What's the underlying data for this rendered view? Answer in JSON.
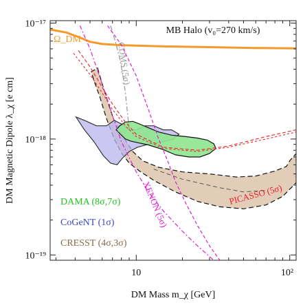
{
  "chart_data": {
    "type": "line",
    "title": "",
    "xlabel": "DM Mass   m_χ [GeV]",
    "ylabel": "DM Magnetic Dipole   λ_χ [e cm]",
    "xscale": "log",
    "yscale": "log",
    "xlim": [
      2.75,
      110
    ],
    "ylim": [
      9e-20,
      1.05e-17
    ],
    "grid": false,
    "x_ticks": [
      {
        "value": 10,
        "label": "10"
      },
      {
        "value": 100,
        "label": "10²"
      }
    ],
    "y_ticks": [
      {
        "value": 1e-17,
        "label": "10⁻¹⁷"
      },
      {
        "value": 1e-18,
        "label": "10⁻¹⁸"
      },
      {
        "value": 1e-19,
        "label": "10⁻¹⁹"
      }
    ],
    "annotation_halo": "MB Halo (v₀=270 km/s)",
    "colors": {
      "omega": "#f39a2a",
      "dama": "#22c322",
      "dama_fill": "#8ee58e",
      "cogent": "#3b47c8",
      "cogent_fill": "#b8b6ee",
      "cresst": "#8a6a4d",
      "cresst_fill": "#dcc4ab",
      "xenon": "#e01fd6",
      "picasso": "#e8232a",
      "cdms": "#9a9a9a"
    },
    "series": [
      {
        "name": "Ω_DM",
        "style": "solid-thick",
        "points": [
          [
            2.75,
            8.8e-18
          ],
          [
            3.5,
            8.3e-18
          ],
          [
            4.3,
            7.5e-18
          ],
          [
            5,
            6.9e-18
          ],
          [
            6,
            6.6e-18
          ],
          [
            8,
            6.45e-18
          ],
          [
            15,
            6.3e-18
          ],
          [
            30,
            6.2e-18
          ],
          [
            60,
            6.1e-18
          ],
          [
            110,
            6.05e-18
          ]
        ]
      },
      {
        "name": "CDMS (5σ)",
        "style": "dash-dot",
        "points": [
          [
            6.8,
            9.5e-18
          ],
          [
            7.3,
            7e-18
          ],
          [
            7.8,
            5e-18
          ],
          [
            8.2,
            3.5e-18
          ],
          [
            8.5,
            2.5e-18
          ],
          [
            8.8,
            1.6e-18
          ],
          [
            9.0,
            1.2e-18
          ]
        ]
      },
      {
        "name": "PICASSO (5σ)",
        "style": "dashed",
        "points": [
          [
            4.2,
            5.8e-18
          ],
          [
            5,
            4.2e-18
          ],
          [
            6,
            2.8e-18
          ],
          [
            7,
            2e-18
          ],
          [
            8.5,
            1.4e-18
          ],
          [
            10,
            1.1e-18
          ],
          [
            15,
            8.5e-19
          ],
          [
            25,
            8e-19
          ],
          [
            40,
            8.7e-19
          ],
          [
            70,
            1.05e-18
          ],
          [
            110,
            1.2e-18
          ]
        ]
      },
      {
        "name": "PICASSO (5σ) lower",
        "style": "dashed",
        "points": [
          [
            3.9,
            5.5e-18
          ],
          [
            5,
            3.6e-18
          ],
          [
            6,
            2.5e-18
          ],
          [
            7,
            1.8e-18
          ],
          [
            8.5,
            1.3e-18
          ],
          [
            10,
            1.05e-18
          ],
          [
            15,
            8.3e-19
          ],
          [
            25,
            7.8e-19
          ],
          [
            40,
            8.5e-19
          ],
          [
            70,
            1e-18
          ],
          [
            110,
            1.15e-18
          ]
        ]
      },
      {
        "name": "XENON (5σ)",
        "style": "dash-dot",
        "points": [
          [
            4.3,
            9.5e-18
          ],
          [
            5,
            6e-18
          ],
          [
            6,
            3e-18
          ],
          [
            7,
            1.6e-18
          ],
          [
            8,
            9.5e-19
          ],
          [
            10,
            5.2e-19
          ],
          [
            12,
            3.5e-19
          ],
          [
            15,
            2.4e-19
          ],
          [
            20,
            1.6e-19
          ],
          [
            25,
            1.2e-19
          ],
          [
            32,
            9e-20
          ]
        ]
      },
      {
        "name": "XENON (5σ) dashed",
        "style": "dashed",
        "points": [
          [
            6.5,
            9.5e-18
          ],
          [
            8,
            6.5e-18
          ],
          [
            10,
            3.5e-18
          ],
          [
            12,
            1.8e-18
          ],
          [
            14,
            1e-18
          ],
          [
            16,
            6.5e-19
          ],
          [
            18,
            4.3e-19
          ],
          [
            21,
            2.8e-19
          ],
          [
            25,
            1.8e-19
          ],
          [
            30,
            1.2e-19
          ],
          [
            35,
            9e-20
          ]
        ]
      },
      {
        "name": "CRESST (4σ,3σ) inner",
        "style": "dashed",
        "points": [
          [
            13,
            5.5e-19
          ],
          [
            20,
            4.5e-19
          ],
          [
            35,
            3.8e-19
          ],
          [
            50,
            3.5e-19
          ],
          [
            70,
            3.6e-19
          ]
        ]
      }
    ],
    "regions": [
      {
        "name": "CRESST (4σ,3σ)",
        "points": [
          [
            5.6,
            4.1e-18
          ],
          [
            6,
            3e-18
          ],
          [
            6.6,
            2e-18
          ],
          [
            7.1,
            1.5e-18
          ],
          [
            7.8,
            1.2e-18
          ],
          [
            8.6,
            9.5e-19
          ],
          [
            9.5,
            7.8e-19
          ],
          [
            11,
            6.5e-19
          ],
          [
            14,
            5.7e-19
          ],
          [
            20,
            5.2e-19
          ],
          [
            30,
            5e-19
          ],
          [
            45,
            4.7e-19
          ],
          [
            60,
            4.8e-19
          ],
          [
            80,
            5.3e-19
          ],
          [
            95,
            5.8e-19
          ],
          [
            100,
            6.5e-19
          ],
          [
            110,
            7.5e-19
          ],
          [
            110,
            4.2e-19
          ],
          [
            90,
            3.2e-19
          ],
          [
            70,
            2.7e-19
          ],
          [
            50,
            2.5e-19
          ],
          [
            35,
            2.6e-19
          ],
          [
            25,
            2.9e-19
          ],
          [
            18,
            3.5e-19
          ],
          [
            13,
            4.4e-19
          ],
          [
            10.5,
            5.3e-19
          ],
          [
            9,
            6.2e-19
          ],
          [
            8,
            7.6e-19
          ],
          [
            7.2,
            1e-18
          ],
          [
            6.4,
            1.5e-18
          ],
          [
            5.8,
            2.3e-18
          ],
          [
            5.3,
            3.2e-18
          ],
          [
            5.1,
            3.8e-18
          ]
        ]
      },
      {
        "name": "CoGeNT (1σ)",
        "points": [
          [
            4.05,
            1.55e-18
          ],
          [
            4.6,
            1.45e-18
          ],
          [
            5.5,
            1.3e-18
          ],
          [
            6.4,
            1.3e-18
          ],
          [
            7.2,
            1.45e-18
          ],
          [
            8,
            1.35e-18
          ],
          [
            9,
            1.2e-18
          ],
          [
            10,
            1.2e-18
          ],
          [
            11.5,
            1.3e-18
          ],
          [
            13,
            1.3e-18
          ],
          [
            15,
            1.2e-18
          ],
          [
            17,
            1.2e-18
          ],
          [
            19,
            1.1e-18
          ],
          [
            17.5,
            1e-18
          ],
          [
            15,
            9.5e-19
          ],
          [
            12,
            9e-19
          ],
          [
            10.2,
            8.5e-19
          ],
          [
            9,
            7.8e-19
          ],
          [
            8.1,
            6.8e-19
          ],
          [
            7.5,
            6e-19
          ],
          [
            6.8,
            6.2e-19
          ],
          [
            6.1,
            7.2e-19
          ],
          [
            5.3,
            9.5e-19
          ],
          [
            4.6,
            1.2e-18
          ]
        ]
      },
      {
        "name": "DAMA (8σ,7σ)",
        "points": [
          [
            7.4,
            1.2e-18
          ],
          [
            7.8,
            1.3e-18
          ],
          [
            8.5,
            1.4e-18
          ],
          [
            9.5,
            1.42e-18
          ],
          [
            10.5,
            1.35e-18
          ],
          [
            12,
            1.25e-18
          ],
          [
            14,
            1.15e-18
          ],
          [
            17,
            1.08e-18
          ],
          [
            21,
            1.05e-18
          ],
          [
            25,
            1.02e-18
          ],
          [
            29,
            9.8e-19
          ],
          [
            32,
            9.1e-19
          ],
          [
            33,
            8.3e-19
          ],
          [
            30,
            7.5e-19
          ],
          [
            26,
            7e-19
          ],
          [
            22,
            7e-19
          ],
          [
            18,
            7.3e-19
          ],
          [
            15,
            8.1e-19
          ],
          [
            12,
            8.9e-19
          ],
          [
            10.2,
            9.3e-19
          ],
          [
            9.2,
            9.6e-19
          ],
          [
            8.5,
            1e-18
          ],
          [
            7.9,
            1.1e-18
          ]
        ]
      }
    ],
    "legend": [
      {
        "label": "DAMA  (8σ,7σ)",
        "color": "#22c322"
      },
      {
        "label": "CoGeNT  (1σ)",
        "color": "#3b47c8"
      },
      {
        "label": "CRESST  (4σ,3σ)",
        "color": "#8a6a4d"
      }
    ],
    "legend_placement": "bottom-left"
  }
}
